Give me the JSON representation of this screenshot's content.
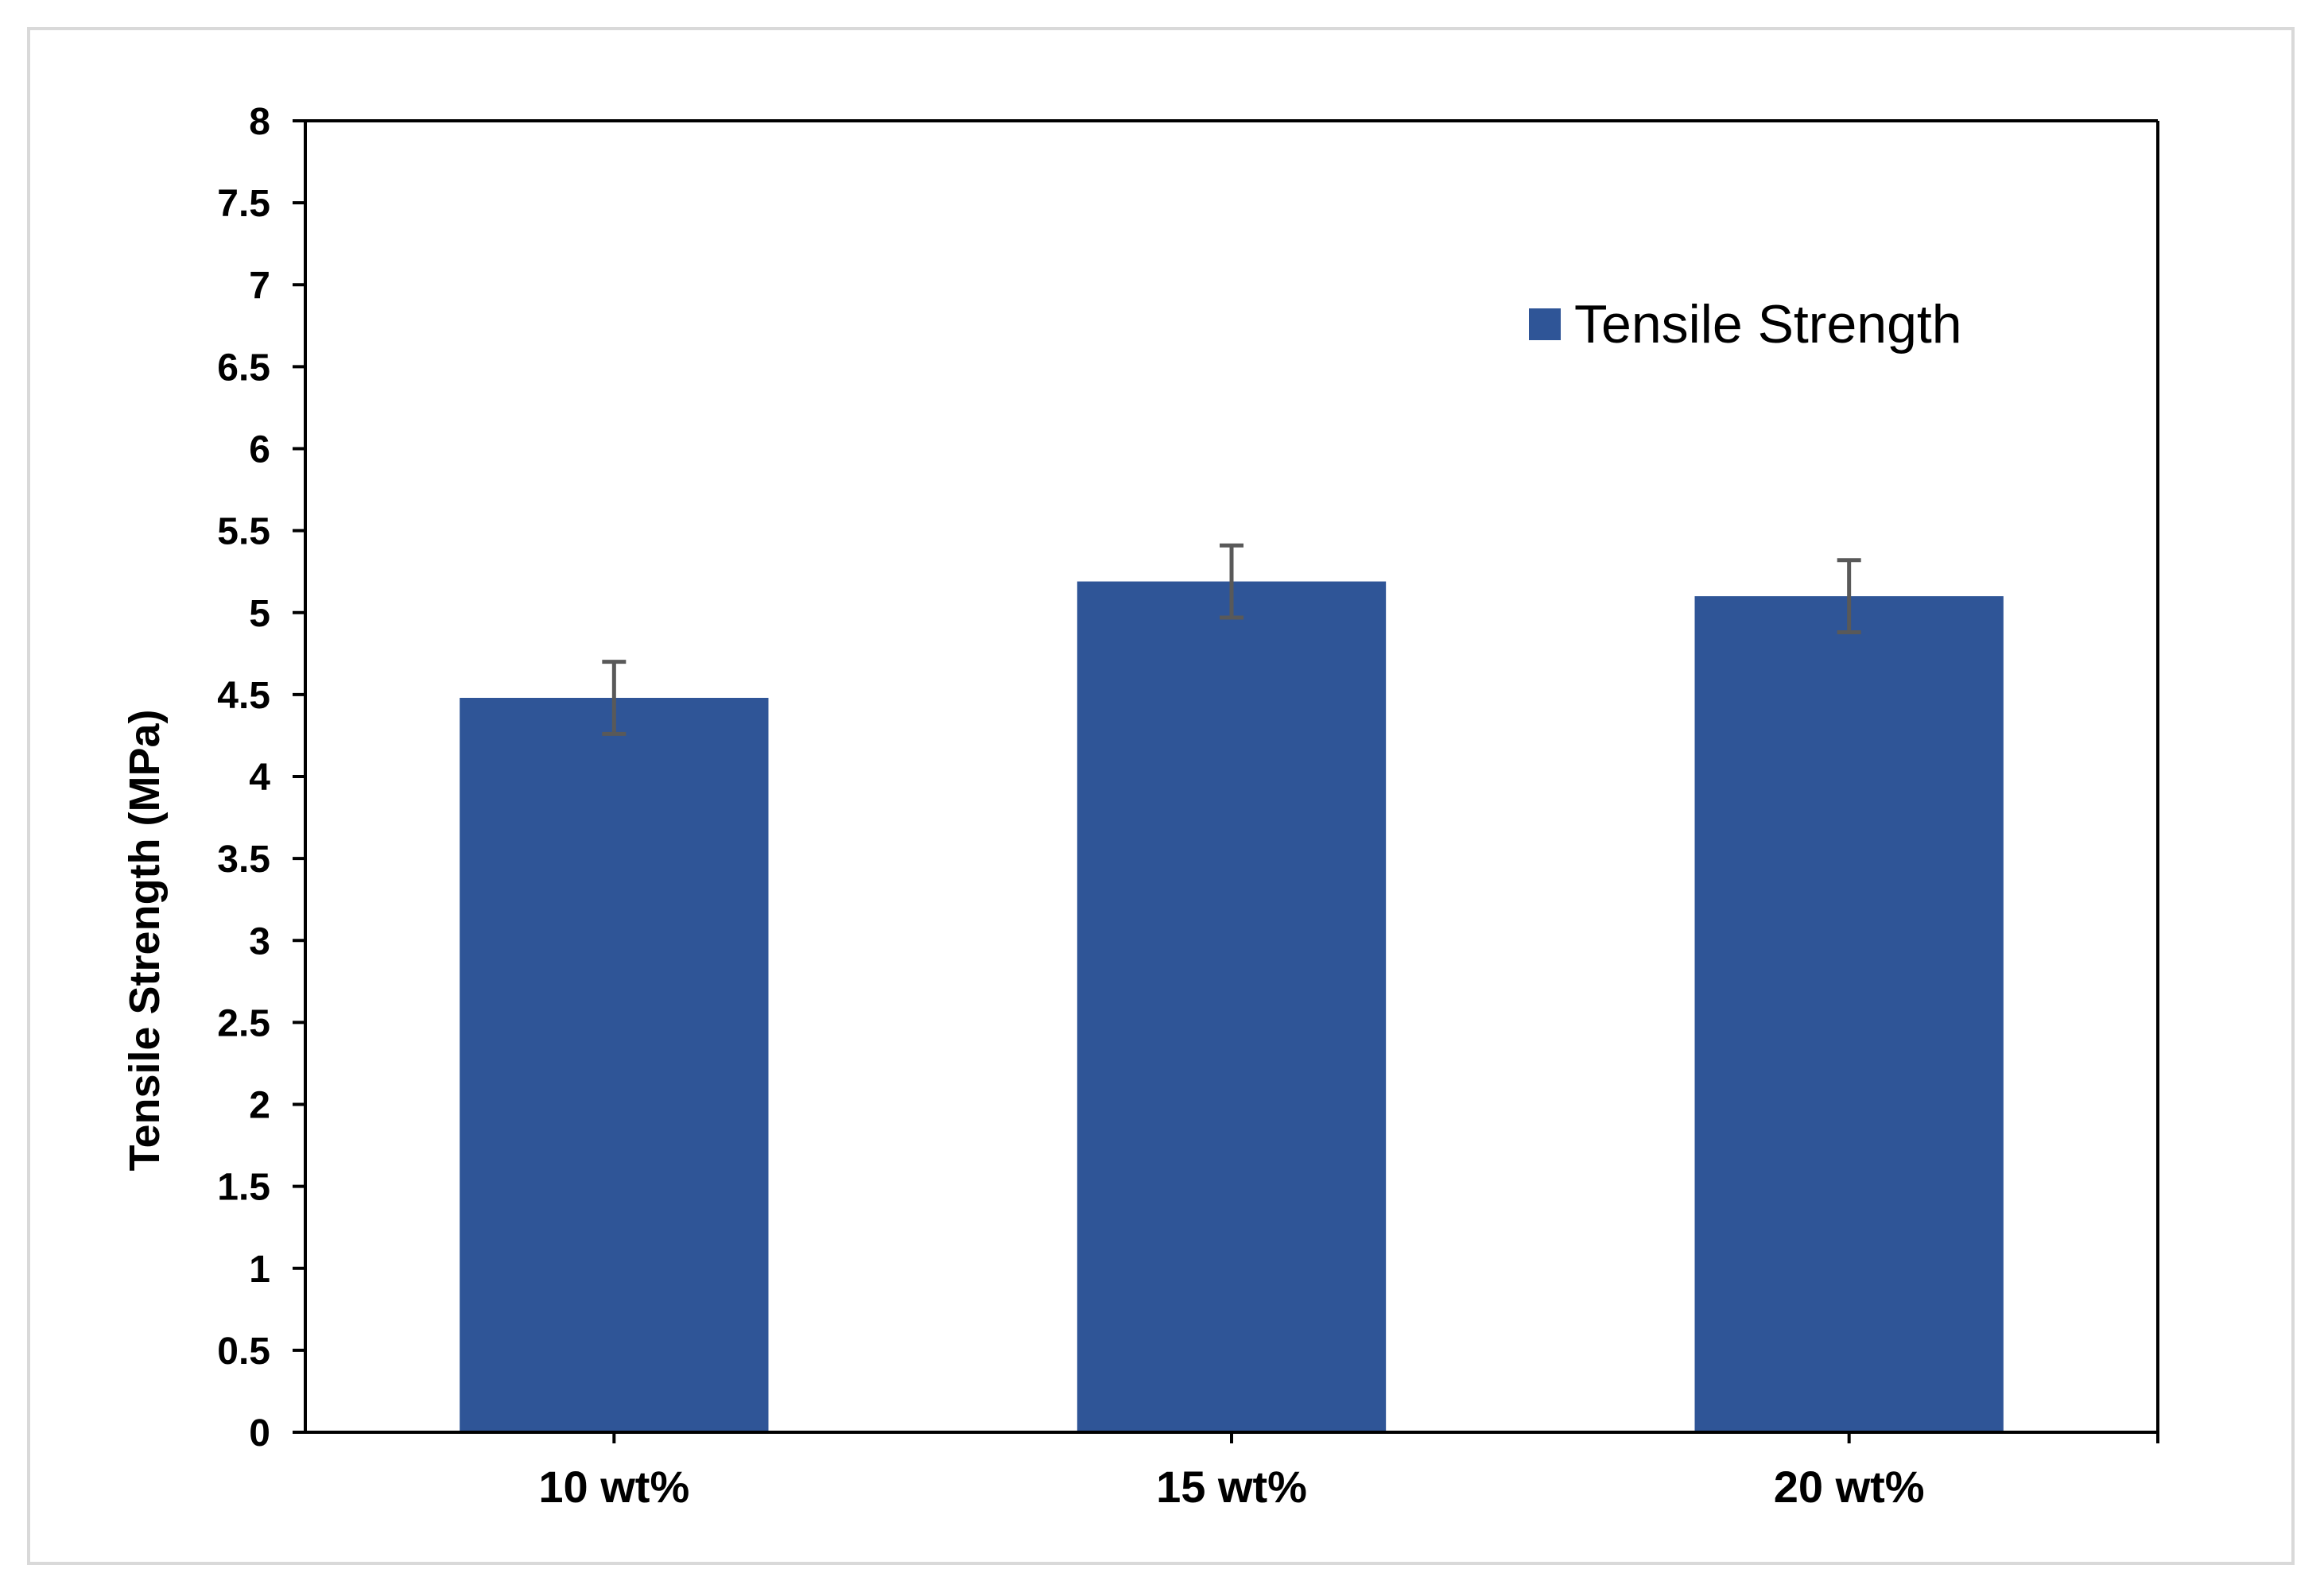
{
  "chart_data": {
    "type": "bar",
    "categories": [
      "10 wt%",
      "15 wt%",
      "20 wt%"
    ],
    "series": [
      {
        "name": "Tensile Strength",
        "values": [
          4.48,
          5.19,
          5.1
        ],
        "errors": [
          0.22,
          0.22,
          0.22
        ],
        "color": "#2f5597"
      }
    ],
    "title": "",
    "xlabel": "",
    "ylabel": "Tensile Strength (MPa)",
    "ylim": [
      0,
      8
    ],
    "yticks": [
      "0",
      "0.5",
      "1",
      "1.5",
      "2",
      "2.5",
      "3",
      "3.5",
      "4",
      "4.5",
      "5",
      "5.5",
      "6",
      "6.5",
      "7",
      "7.5",
      "8"
    ],
    "grid": false,
    "legend": "top-right",
    "error_bar_color": "#595959",
    "axis_color": "#000000"
  }
}
